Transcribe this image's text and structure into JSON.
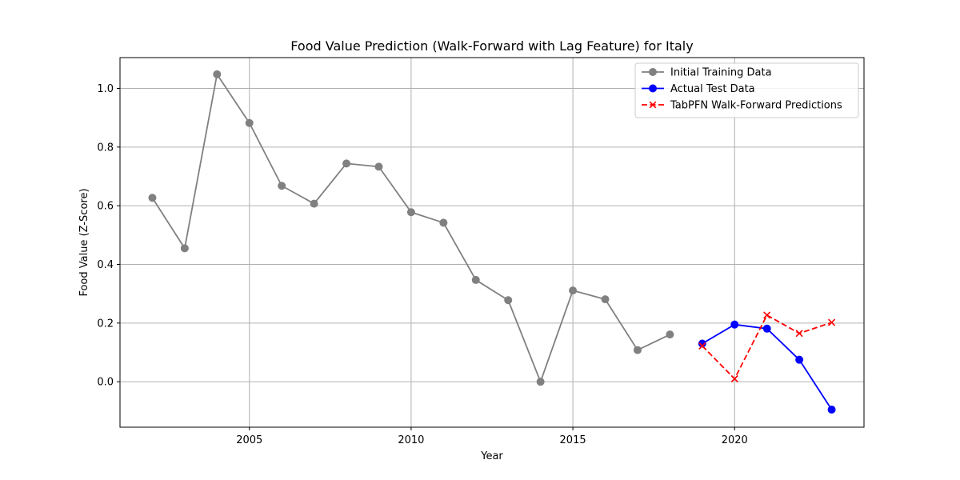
{
  "chart_data": {
    "type": "line",
    "title": "Food Value Prediction (Walk-Forward with Lag Feature) for Italy",
    "xlabel": "Year",
    "ylabel": "Food Value (Z-Score)",
    "xlim": [
      2001.0,
      2024.0
    ],
    "ylim": [
      -0.155,
      1.105
    ],
    "xticks": [
      2005,
      2010,
      2015,
      2020
    ],
    "yticks": [
      0.0,
      0.2,
      0.4,
      0.6,
      0.8,
      1.0
    ],
    "xtick_labels": [
      "2005",
      "2010",
      "2015",
      "2020"
    ],
    "ytick_labels": [
      "0.0",
      "0.2",
      "0.4",
      "0.6",
      "0.8",
      "1.0"
    ],
    "grid": true,
    "legend_position": "top-right",
    "series": [
      {
        "name": "Initial Training Data",
        "color": "#808080",
        "linestyle": "solid",
        "marker": "circle",
        "x": [
          2002,
          2003,
          2004,
          2005,
          2006,
          2007,
          2008,
          2009,
          2010,
          2011,
          2012,
          2013,
          2014,
          2015,
          2016,
          2017,
          2018
        ],
        "y": [
          0.627,
          0.455,
          1.048,
          0.882,
          0.668,
          0.607,
          0.744,
          0.733,
          0.578,
          0.542,
          0.347,
          0.278,
          0.0,
          0.311,
          0.281,
          0.108,
          0.161
        ]
      },
      {
        "name": "Actual Test Data",
        "color": "#0000ff",
        "linestyle": "solid",
        "marker": "circle",
        "x": [
          2019,
          2020,
          2021,
          2022,
          2023
        ],
        "y": [
          0.13,
          0.195,
          0.181,
          0.075,
          -0.095
        ]
      },
      {
        "name": "TabPFN Walk-Forward Predictions",
        "color": "#ff0000",
        "linestyle": "dashed",
        "marker": "x",
        "x": [
          2019,
          2020,
          2021,
          2022,
          2023
        ],
        "y": [
          0.122,
          0.01,
          0.227,
          0.165,
          0.202
        ]
      }
    ]
  }
}
